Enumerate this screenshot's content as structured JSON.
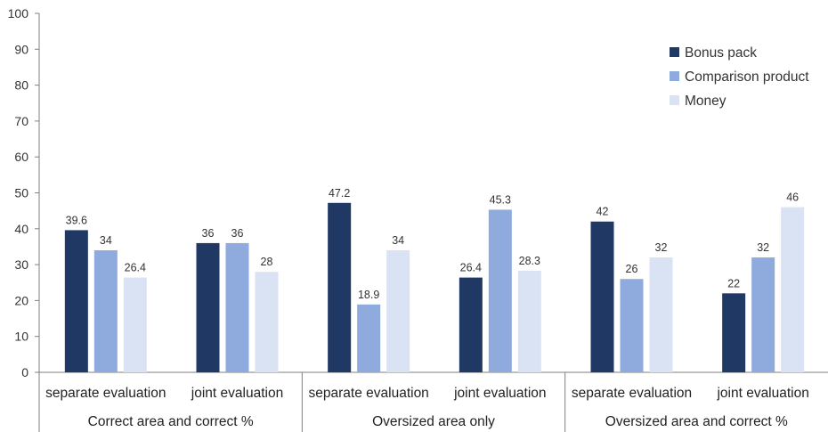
{
  "chart_data": {
    "type": "bar",
    "ylim": [
      0,
      100
    ],
    "yticks": [
      0,
      10,
      20,
      30,
      40,
      50,
      60,
      70,
      80,
      90,
      100
    ],
    "grid": false,
    "legend_position": "top-right",
    "groups": [
      "Correct area and correct %",
      "Oversized area only",
      "Oversized area and correct %"
    ],
    "categories": [
      "separate evaluation",
      "joint evaluation",
      "separate evaluation",
      "joint evaluation",
      "separate evaluation",
      "joint evaluation"
    ],
    "series": [
      {
        "name": "Bonus pack",
        "color": "#1f3864",
        "values": [
          39.6,
          36,
          47.2,
          26.4,
          42,
          22
        ]
      },
      {
        "name": "Comparison product",
        "color": "#8faadc",
        "values": [
          34,
          36,
          18.9,
          45.3,
          26,
          32
        ]
      },
      {
        "name": "Money",
        "color": "#dae3f3",
        "values": [
          26.4,
          28,
          34,
          28.3,
          32,
          46
        ]
      }
    ],
    "data_labels": [
      [
        "39.6",
        "36",
        "47.2",
        "26.4",
        "42",
        "22"
      ],
      [
        "34",
        "36",
        "18.9",
        "45.3",
        "26",
        "32"
      ],
      [
        "26.4",
        "28",
        "34",
        "28.3",
        "32",
        "46"
      ]
    ]
  }
}
